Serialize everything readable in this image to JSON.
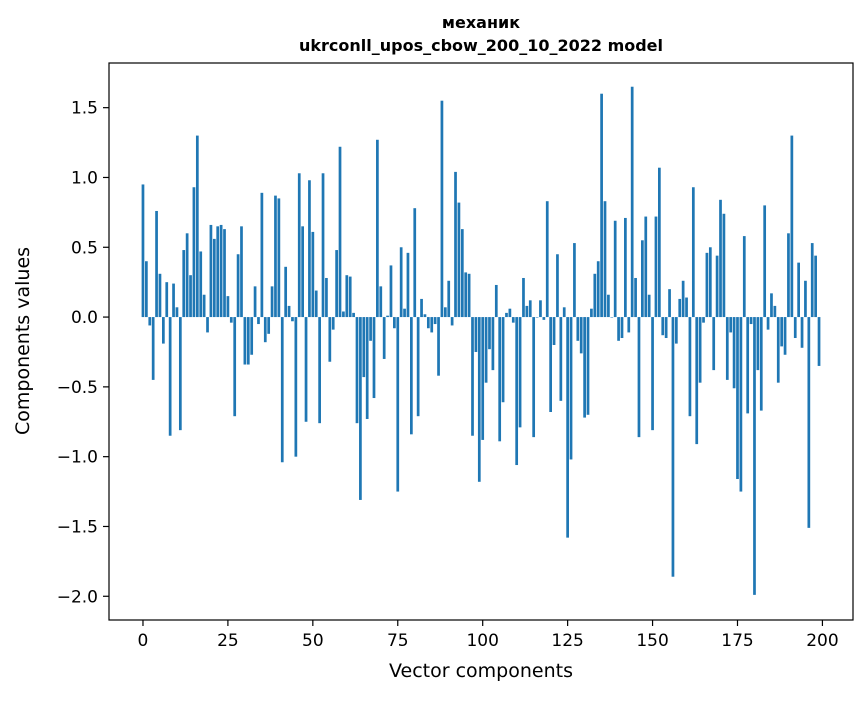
{
  "chart_data": {
    "type": "bar",
    "title": "механик",
    "subtitle": "ukrconll_upos_cbow_200_10_2022 model",
    "xlabel": "Vector components",
    "ylabel": "Components values",
    "xlim": [
      -10,
      209
    ],
    "ylim": [
      -2.17,
      1.82
    ],
    "xticks": [
      0,
      25,
      50,
      75,
      100,
      125,
      150,
      175,
      200
    ],
    "xtick_labels": [
      "0",
      "25",
      "50",
      "75",
      "100",
      "125",
      "150",
      "175",
      "200"
    ],
    "yticks": [
      1.5,
      1.0,
      0.5,
      0.0,
      -0.5,
      -1.0,
      -1.5,
      -2.0
    ],
    "ytick_labels": [
      "1.5",
      "1.0",
      "0.5",
      "0.0",
      "−0.5",
      "−1.0",
      "−1.5",
      "−2.0"
    ],
    "grid": false,
    "bar_color": "#1f77b4",
    "x": [
      0,
      1,
      2,
      3,
      4,
      5,
      6,
      7,
      8,
      9,
      10,
      11,
      12,
      13,
      14,
      15,
      16,
      17,
      18,
      19,
      20,
      21,
      22,
      23,
      24,
      25,
      26,
      27,
      28,
      29,
      30,
      31,
      32,
      33,
      34,
      35,
      36,
      37,
      38,
      39,
      40,
      41,
      42,
      43,
      44,
      45,
      46,
      47,
      48,
      49,
      50,
      51,
      52,
      53,
      54,
      55,
      56,
      57,
      58,
      59,
      60,
      61,
      62,
      63,
      64,
      65,
      66,
      67,
      68,
      69,
      70,
      71,
      72,
      73,
      74,
      75,
      76,
      77,
      78,
      79,
      80,
      81,
      82,
      83,
      84,
      85,
      86,
      87,
      88,
      89,
      90,
      91,
      92,
      93,
      94,
      95,
      96,
      97,
      98,
      99,
      100,
      101,
      102,
      103,
      104,
      105,
      106,
      107,
      108,
      109,
      110,
      111,
      112,
      113,
      114,
      115,
      116,
      117,
      118,
      119,
      120,
      121,
      122,
      123,
      124,
      125,
      126,
      127,
      128,
      129,
      130,
      131,
      132,
      133,
      134,
      135,
      136,
      137,
      138,
      139,
      140,
      141,
      142,
      143,
      144,
      145,
      146,
      147,
      148,
      149,
      150,
      151,
      152,
      153,
      154,
      155,
      156,
      157,
      158,
      159,
      160,
      161,
      162,
      163,
      164,
      165,
      166,
      167,
      168,
      169,
      170,
      171,
      172,
      173,
      174,
      175,
      176,
      177,
      178,
      179,
      180,
      181,
      182,
      183,
      184,
      185,
      186,
      187,
      188,
      189,
      190,
      191,
      192,
      193,
      194,
      195,
      196,
      197,
      198,
      199
    ],
    "values": [
      0.95,
      0.4,
      -0.06,
      -0.45,
      0.76,
      0.31,
      -0.19,
      0.25,
      -0.85,
      0.24,
      0.07,
      -0.81,
      0.48,
      0.6,
      0.3,
      0.93,
      1.3,
      0.47,
      0.16,
      -0.11,
      0.66,
      0.56,
      0.65,
      0.66,
      0.63,
      0.15,
      -0.04,
      -0.71,
      0.45,
      0.65,
      -0.34,
      -0.34,
      -0.27,
      0.22,
      -0.05,
      0.89,
      -0.18,
      -0.12,
      0.22,
      0.87,
      0.85,
      -1.04,
      0.36,
      0.08,
      -0.03,
      -1.0,
      1.03,
      0.65,
      -0.75,
      0.98,
      0.61,
      0.19,
      -0.76,
      1.03,
      0.28,
      -0.32,
      -0.09,
      0.48,
      1.22,
      0.04,
      0.3,
      0.29,
      0.03,
      -0.76,
      -1.31,
      -0.43,
      -0.73,
      -0.17,
      -0.58,
      1.27,
      0.22,
      -0.3,
      0.01,
      0.37,
      -0.08,
      -1.25,
      0.5,
      0.06,
      0.46,
      -0.84,
      0.78,
      -0.71,
      0.13,
      0.02,
      -0.08,
      -0.11,
      -0.05,
      -0.42,
      1.55,
      0.07,
      0.26,
      -0.06,
      1.04,
      0.82,
      0.63,
      0.32,
      0.31,
      -0.85,
      -0.25,
      -1.18,
      -0.88,
      -0.47,
      -0.23,
      -0.38,
      0.23,
      -0.89,
      -0.61,
      0.03,
      0.06,
      -0.04,
      -1.06,
      -0.79,
      0.28,
      0.08,
      0.12,
      -0.86,
      0.0,
      0.12,
      -0.02,
      0.83,
      -0.68,
      -0.2,
      0.45,
      -0.6,
      0.07,
      -1.58,
      -1.02,
      0.53,
      -0.17,
      -0.26,
      -0.72,
      -0.7,
      0.06,
      0.31,
      0.4,
      1.6,
      0.83,
      0.16,
      0.0,
      0.69,
      -0.17,
      -0.15,
      0.71,
      -0.11,
      1.65,
      0.28,
      -0.86,
      0.55,
      0.72,
      0.16,
      -0.81,
      0.72,
      1.07,
      -0.13,
      -0.15,
      0.2,
      -1.86,
      -0.19,
      0.13,
      0.26,
      0.14,
      -0.71,
      0.93,
      -0.91,
      -0.47,
      -0.04,
      0.46,
      0.5,
      -0.38,
      0.44,
      0.84,
      0.74,
      -0.45,
      -0.11,
      -0.51,
      -1.16,
      -1.25,
      0.58,
      -0.69,
      -0.05,
      -1.99,
      -0.38,
      -0.67,
      0.8,
      -0.09,
      0.17,
      0.08,
      -0.47,
      -0.21,
      -0.27,
      0.6,
      1.3,
      -0.15,
      0.39,
      -0.22,
      0.26,
      -1.51,
      0.53,
      0.44,
      -0.35
    ]
  }
}
